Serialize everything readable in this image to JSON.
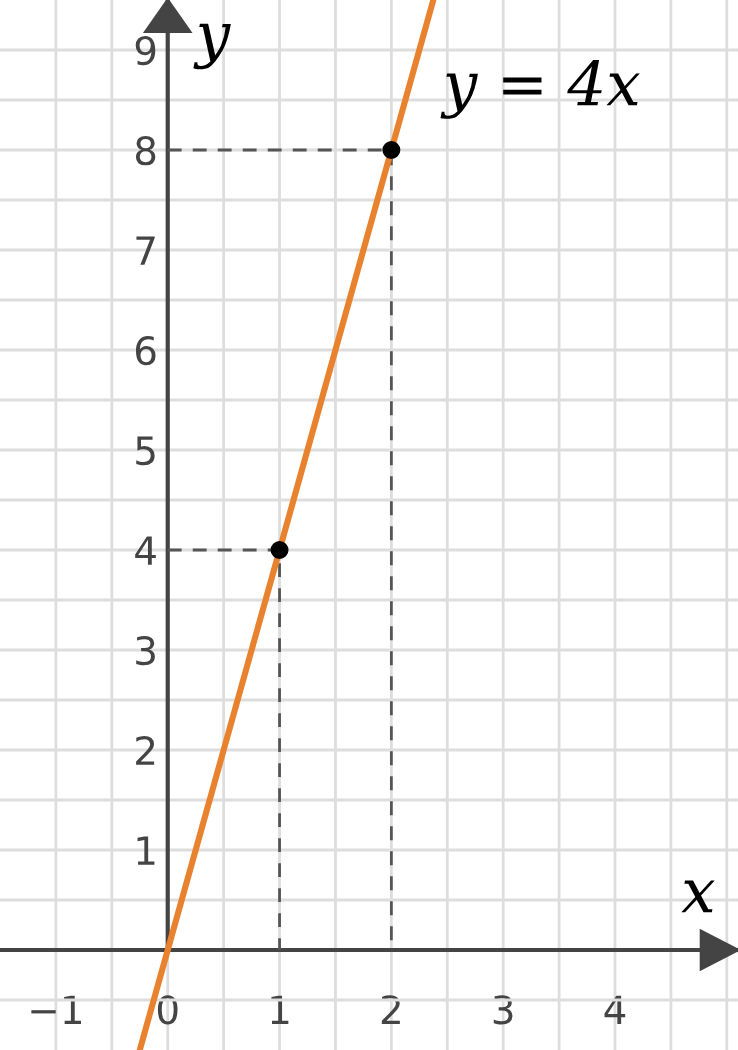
{
  "chart_data": {
    "type": "line",
    "xlabel": "x",
    "ylabel": "y",
    "xlim": [
      -1.5,
      5.1
    ],
    "ylim": [
      -1,
      9.5
    ],
    "xticks": [
      -1,
      {
        "value": -0.5,
        "label": null
      },
      0,
      {
        "value": 0.5,
        "label": null
      },
      1,
      {
        "value": 1.5,
        "label": null
      },
      2,
      {
        "value": 2.5,
        "label": null
      },
      3,
      {
        "value": 3.5,
        "label": null
      },
      4,
      {
        "value": 4.5,
        "label": null
      },
      {
        "value": 5,
        "label": null
      }
    ],
    "yticks": [
      {
        "value": -0.5,
        "label": null
      },
      {
        "value": 0.5,
        "label": null
      },
      1,
      {
        "value": 1.5,
        "label": null
      },
      2,
      {
        "value": 2.5,
        "label": null
      },
      3,
      {
        "value": 3.5,
        "label": null
      },
      4,
      {
        "value": 4.5,
        "label": null
      },
      5,
      {
        "value": 5.5,
        "label": null
      },
      6,
      {
        "value": 6.5,
        "label": null
      },
      7,
      {
        "value": 7.5,
        "label": null
      },
      8,
      {
        "value": 8.5,
        "label": null
      },
      9
    ],
    "grid": true,
    "series": [
      {
        "line_style": "dashed",
        "color": "#555555",
        "x": [
          0,
          1,
          1
        ],
        "values": [
          4,
          4,
          0
        ]
      },
      {
        "line_style": "dashed",
        "color": "#555555",
        "x": [
          0,
          2,
          2
        ],
        "values": [
          8,
          8,
          0
        ]
      },
      {
        "color": "#e8822e",
        "x": [
          -0.25,
          2.375
        ],
        "values": [
          -1,
          9.5
        ]
      },
      {
        "type": "scatter",
        "marker": "circle",
        "color": "#000000",
        "x": [
          1,
          2
        ],
        "values": [
          4,
          8
        ]
      }
    ],
    "annotations": [
      "y = 4x"
    ]
  }
}
